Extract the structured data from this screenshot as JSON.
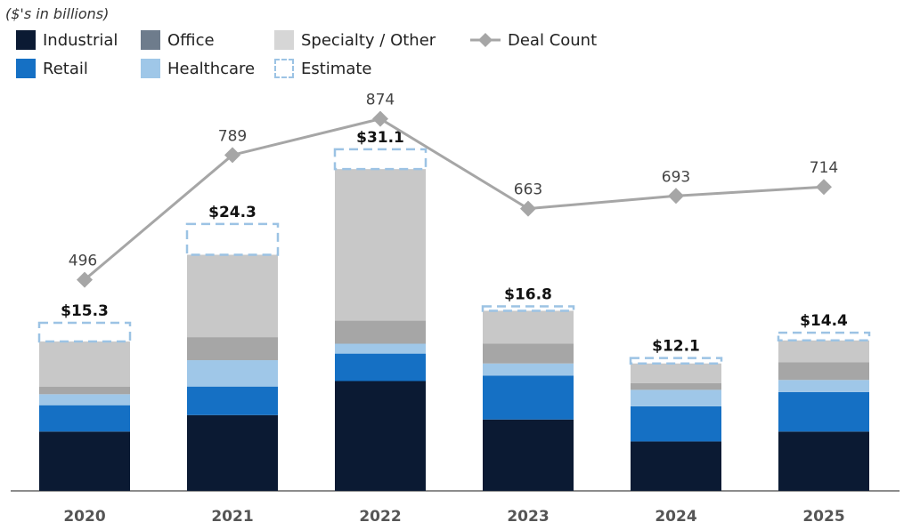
{
  "chart_data": {
    "type": "bar",
    "subtitle": "($'s in billions)",
    "stacked": true,
    "categories": [
      "2020",
      "2021",
      "2022",
      "2023",
      "2024",
      "2025"
    ],
    "series": [
      {
        "name": "Industrial",
        "color": "#0b1a33",
        "values": [
          5.4,
          6.9,
          10.0,
          6.5,
          4.5,
          5.4
        ]
      },
      {
        "name": "Retail",
        "color": "#1570c4",
        "values": [
          2.4,
          2.6,
          2.5,
          4.0,
          3.2,
          3.6
        ]
      },
      {
        "name": "Healthcare",
        "color": "#9fc7e8",
        "values": [
          1.0,
          2.4,
          0.9,
          1.1,
          1.5,
          1.1
        ]
      },
      {
        "name": "Office",
        "color": "#6e7c8c",
        "bar_color": "#a6a6a6",
        "values": [
          0.7,
          2.1,
          2.1,
          1.8,
          0.6,
          1.6
        ]
      },
      {
        "name": "Specialty / Other",
        "color": "#d6d6d6",
        "bar_color": "#c8c8c8",
        "values": [
          4.1,
          7.5,
          13.8,
          3.0,
          1.8,
          2.0
        ]
      },
      {
        "name": "Estimate",
        "color": "#9cc3e4",
        "style": "dashed-outline",
        "values": [
          1.7,
          2.8,
          1.8,
          0.4,
          0.5,
          0.7
        ]
      }
    ],
    "totals": [
      15.3,
      24.3,
      31.1,
      16.8,
      12.1,
      14.4
    ],
    "total_labels": [
      "$15.3",
      "$24.3",
      "$31.1",
      "$16.8",
      "$12.1",
      "$14.4"
    ],
    "line_series": {
      "name": "Deal Count",
      "color": "#a6a6a6",
      "values": [
        496,
        789,
        874,
        663,
        693,
        714
      ]
    },
    "y_range": [
      0,
      40
    ],
    "y2_range": [
      0,
      1032
    ],
    "grid": false,
    "legend_position": "top-left"
  }
}
